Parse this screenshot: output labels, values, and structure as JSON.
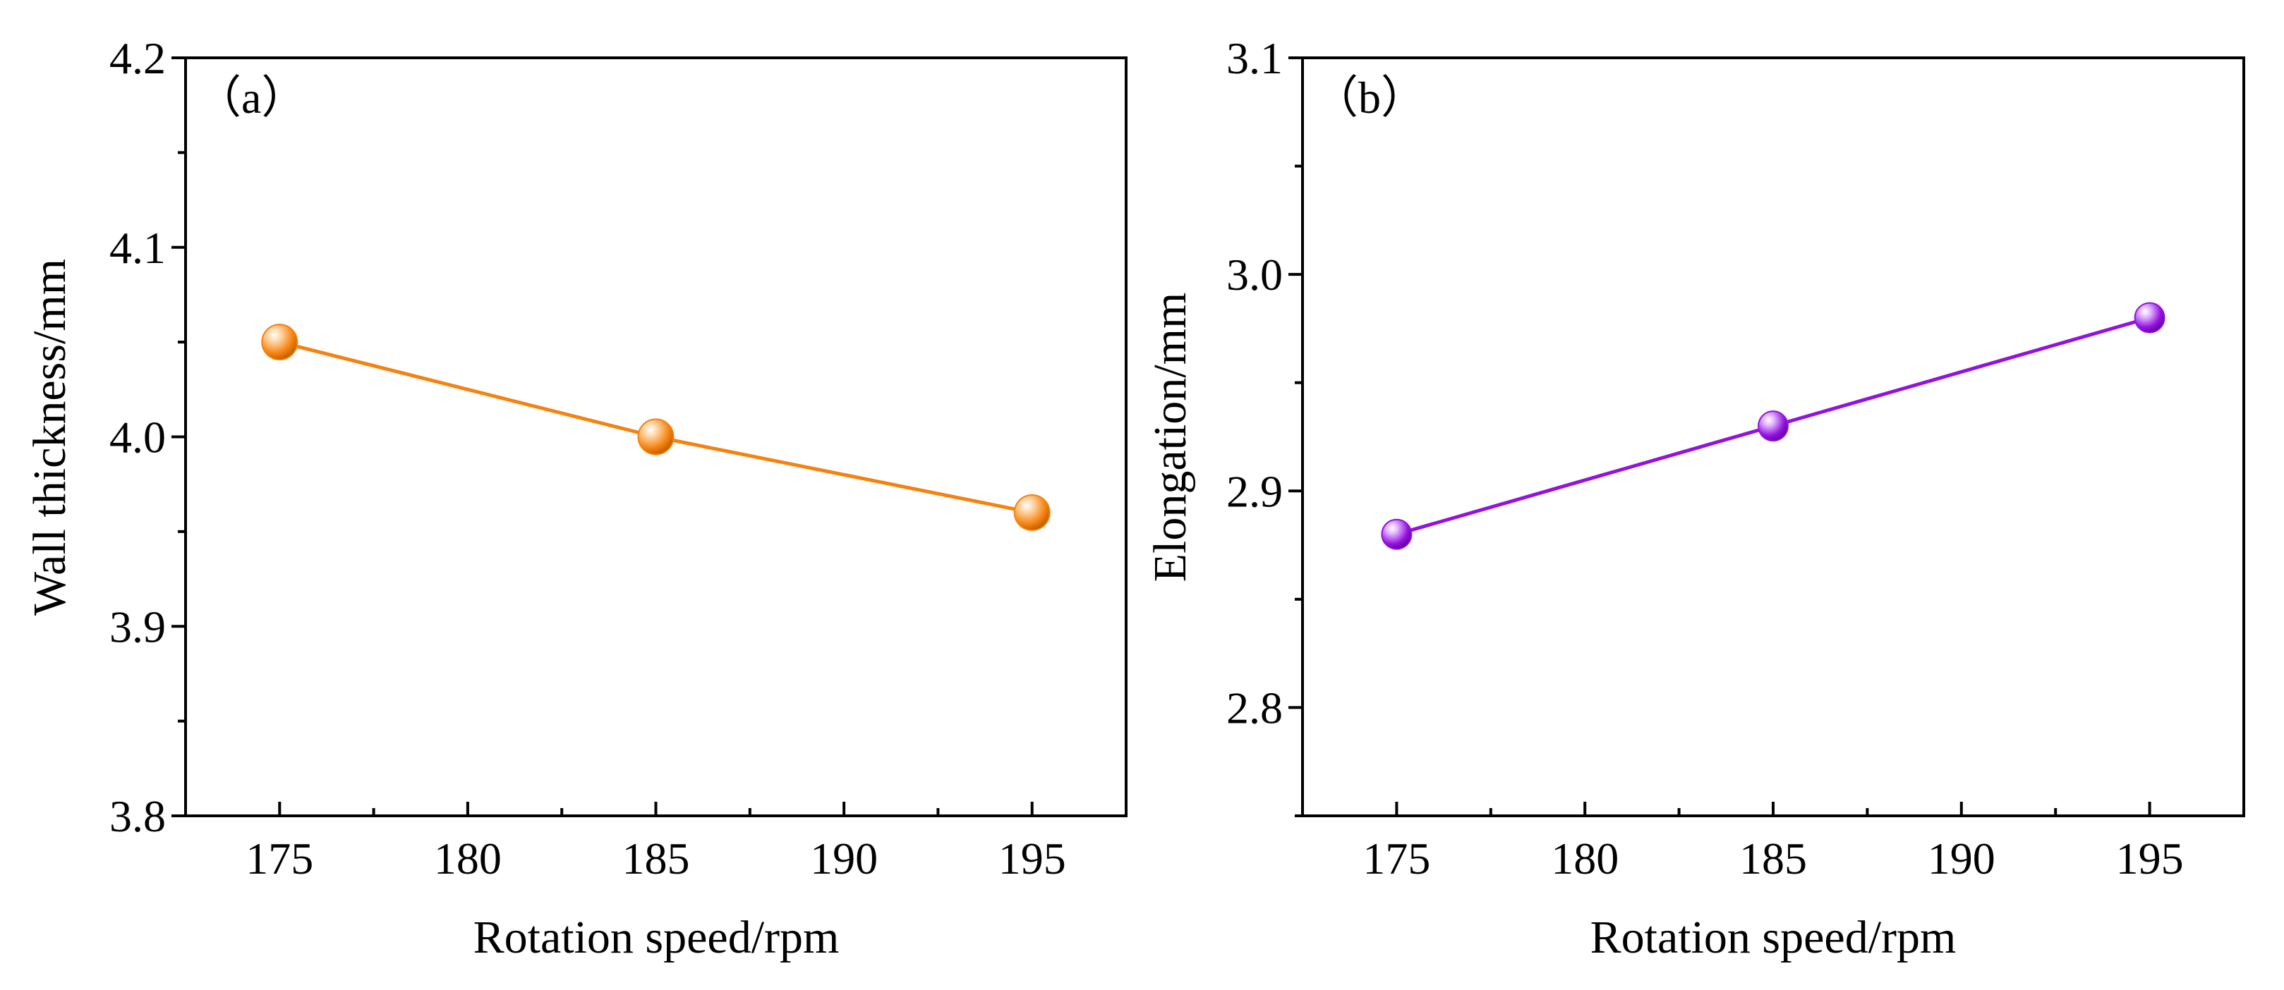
{
  "chart_data": [
    {
      "type": "line",
      "panel_label": "（a）",
      "xlabel": "Rotation speed/rpm",
      "ylabel": "Wall thickness/mm",
      "xlim": [
        172.5,
        197.5
      ],
      "ylim": [
        3.8,
        4.2
      ],
      "x_ticks": [
        175,
        180,
        185,
        190,
        195
      ],
      "x_tick_labels": [
        "175",
        "180",
        "185",
        "190",
        "195"
      ],
      "x_minor_ticks": [
        177.5,
        182.5,
        187.5,
        192.5
      ],
      "y_ticks": [
        3.8,
        3.9,
        4.0,
        4.1,
        4.2
      ],
      "y_tick_labels": [
        "3.8",
        "3.9",
        "4.0",
        "4.1",
        "4.2"
      ],
      "y_minor_ticks": [
        3.85,
        3.95,
        4.05,
        4.15
      ],
      "series": [
        {
          "name": "Wall thickness",
          "color": "#f5820f",
          "x": [
            175,
            185,
            195
          ],
          "values": [
            4.05,
            4.0,
            3.96
          ]
        }
      ]
    },
    {
      "type": "line",
      "panel_label": "（b）",
      "xlabel": "Rotation speed/rpm",
      "ylabel": "Elongation/mm",
      "xlim": [
        172.5,
        197.5
      ],
      "ylim": [
        2.75,
        3.1
      ],
      "x_ticks": [
        175,
        180,
        185,
        190,
        195
      ],
      "x_tick_labels": [
        "175",
        "180",
        "185",
        "190",
        "195"
      ],
      "x_minor_ticks": [
        177.5,
        182.5,
        187.5,
        192.5
      ],
      "y_ticks": [
        2.8,
        2.9,
        3.0,
        3.1
      ],
      "y_tick_labels": [
        "2.8",
        "2.9",
        "3.0",
        "3.1"
      ],
      "y_minor_ticks": [
        2.75,
        2.85,
        2.95,
        3.05
      ],
      "series": [
        {
          "name": "Elongation",
          "color": "#9412e0",
          "x": [
            175,
            185,
            195
          ],
          "values": [
            2.88,
            2.93,
            2.98
          ]
        }
      ]
    }
  ]
}
